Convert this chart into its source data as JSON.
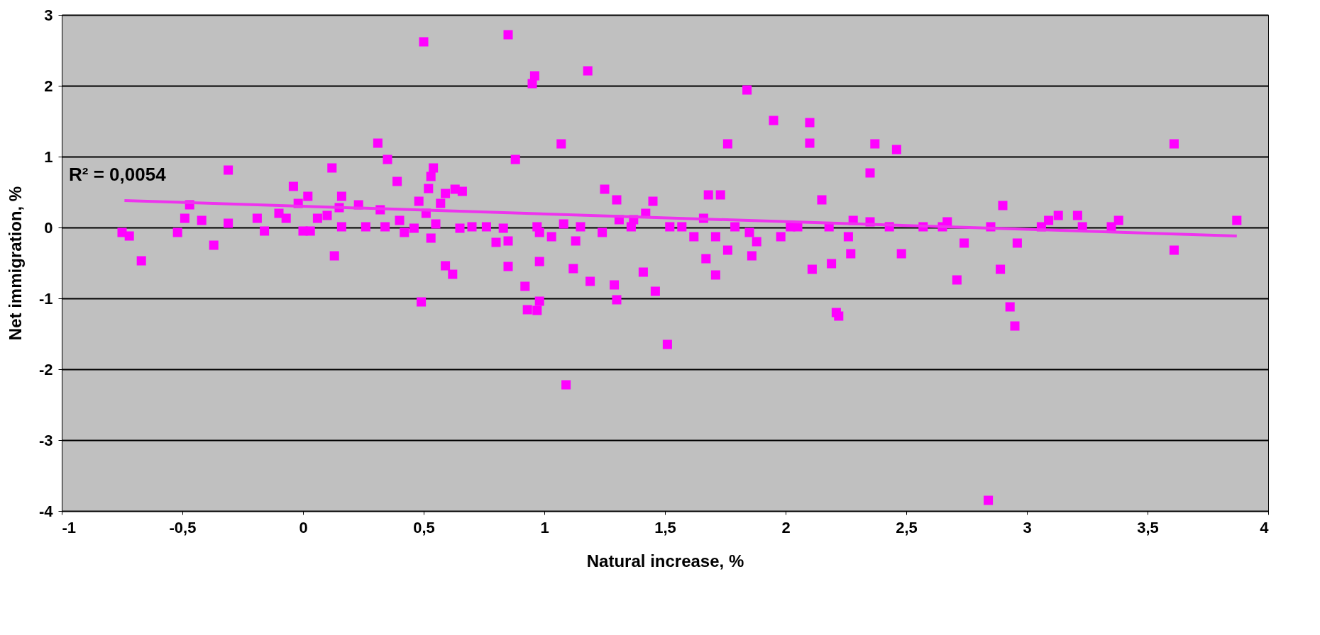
{
  "chart_data": {
    "type": "scatter",
    "xlabel": "Natural increase, %",
    "ylabel": "Net immigration, %",
    "xlim": [
      -1,
      4
    ],
    "ylim": [
      -4,
      3
    ],
    "xticks": [
      -1,
      {
        "value": -0.5,
        "label": "-0,5"
      },
      0,
      {
        "value": 0.5,
        "label": "0,5"
      },
      1,
      {
        "value": 1.5,
        "label": "1,5"
      },
      2,
      {
        "value": 2.5,
        "label": "2,5"
      },
      3,
      {
        "value": 3.5,
        "label": "3,5"
      },
      4
    ],
    "yticks": [
      -4,
      -3,
      -2,
      -1,
      0,
      1,
      2,
      3
    ],
    "grid": "y",
    "annotations": [
      "R² = 0,0054"
    ],
    "series": [
      {
        "marker": "square",
        "color": "#ff00ff",
        "x": [
          -0.75,
          -0.72,
          -0.67,
          -0.52,
          -0.49,
          -0.47,
          -0.42,
          -0.37,
          -0.31,
          -0.31,
          -0.19,
          -0.16,
          -0.1,
          -0.07,
          -0.04,
          -0.02,
          0.0,
          0.02,
          0.03,
          0.06,
          0.1,
          0.12,
          0.13,
          0.15,
          0.16,
          0.16,
          0.23,
          0.26,
          0.31,
          0.32,
          0.34,
          0.35,
          0.39,
          0.4,
          0.42,
          0.46,
          0.48,
          0.49,
          0.5,
          0.51,
          0.52,
          0.53,
          0.54,
          0.53,
          0.55,
          0.57,
          0.59,
          0.59,
          0.62,
          0.63,
          0.66,
          0.65,
          0.7,
          0.76,
          0.8,
          0.83,
          0.85,
          0.85,
          0.85,
          0.88,
          0.92,
          0.93,
          0.95,
          0.96,
          0.97,
          0.97,
          0.98,
          0.98,
          0.98,
          1.03,
          1.07,
          1.09,
          1.08,
          1.12,
          1.13,
          1.15,
          1.18,
          1.19,
          1.24,
          1.25,
          1.29,
          1.3,
          1.3,
          1.31,
          1.36,
          1.37,
          1.41,
          1.42,
          1.45,
          1.46,
          1.51,
          1.52,
          1.57,
          1.62,
          1.66,
          1.67,
          1.68,
          1.71,
          1.71,
          1.73,
          1.76,
          1.76,
          1.79,
          1.84,
          1.85,
          1.86,
          1.88,
          1.95,
          1.98,
          2.02,
          2.05,
          2.1,
          2.1,
          2.11,
          2.15,
          2.18,
          2.19,
          2.21,
          2.22,
          2.26,
          2.27,
          2.28,
          2.35,
          2.35,
          2.37,
          2.43,
          2.46,
          2.48,
          2.57,
          2.65,
          2.67,
          2.71,
          2.74,
          2.84,
          2.85,
          2.89,
          2.9,
          2.93,
          2.95,
          2.96,
          3.06,
          3.09,
          3.13,
          3.21,
          3.23,
          3.35,
          3.38,
          3.61,
          3.61,
          3.87
        ],
        "values": [
          -0.07,
          -0.12,
          -0.47,
          -0.07,
          0.13,
          0.32,
          0.1,
          -0.25,
          0.81,
          0.06,
          0.13,
          -0.05,
          0.2,
          0.13,
          0.58,
          0.34,
          -0.05,
          0.44,
          -0.05,
          0.13,
          0.17,
          0.84,
          -0.4,
          0.28,
          0.44,
          0.01,
          0.32,
          0.01,
          1.19,
          0.25,
          0.01,
          0.96,
          0.65,
          0.1,
          -0.07,
          -0.01,
          0.37,
          -1.05,
          2.62,
          0.2,
          0.55,
          0.72,
          0.84,
          -0.15,
          0.05,
          0.34,
          0.48,
          -0.54,
          -0.66,
          0.54,
          0.51,
          -0.01,
          0.01,
          0.01,
          -0.21,
          -0.01,
          -0.19,
          2.72,
          -0.55,
          0.96,
          -0.83,
          -1.16,
          2.03,
          2.14,
          0.01,
          -1.17,
          -1.04,
          -0.48,
          -0.07,
          -0.13,
          1.18,
          -2.22,
          0.05,
          -0.58,
          -0.19,
          0.01,
          2.21,
          -0.76,
          -0.07,
          0.54,
          -0.81,
          -1.02,
          0.39,
          0.11,
          0.01,
          0.11,
          -0.63,
          0.2,
          0.37,
          -0.9,
          -1.65,
          0.01,
          0.01,
          -0.13,
          0.13,
          -0.44,
          0.46,
          -0.13,
          -0.67,
          0.46,
          1.18,
          -0.32,
          0.01,
          1.94,
          -0.07,
          -0.4,
          -0.2,
          1.51,
          -0.13,
          0.01,
          0.01,
          1.48,
          1.19,
          -0.59,
          0.39,
          0.01,
          -0.51,
          -1.2,
          -1.25,
          -0.13,
          -0.37,
          0.1,
          0.77,
          0.08,
          1.18,
          0.01,
          1.1,
          -0.37,
          0.01,
          0.01,
          0.08,
          -0.74,
          -0.22,
          -3.85,
          0.01,
          -0.59,
          0.31,
          -1.12,
          -1.39,
          -0.22,
          0.01,
          0.1,
          0.17,
          0.17,
          0.01,
          0.01,
          0.1,
          -0.32,
          1.18,
          0.1
        ]
      },
      {
        "type": "line",
        "marker": "none",
        "line_style": "solid",
        "color": "#ee33ee",
        "x": [
          -0.74,
          3.87
        ],
        "values": [
          0.38,
          -0.12
        ]
      }
    ]
  }
}
